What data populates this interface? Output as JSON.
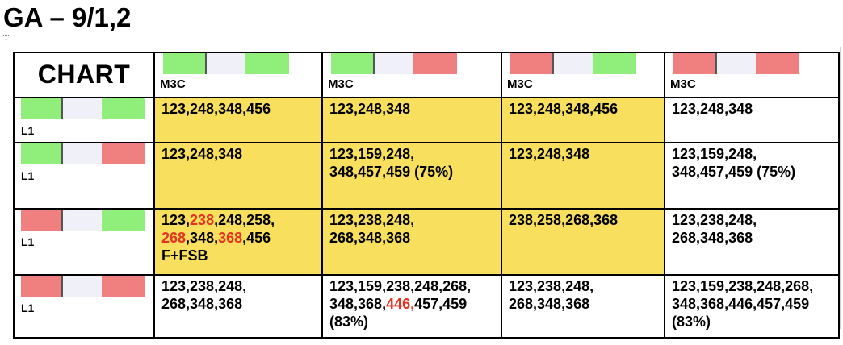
{
  "title": "GA – 9/1,2",
  "colors": {
    "green": "#90ee7a",
    "red": "#f08080",
    "neutral": "#f0f0f8",
    "highlight": "#f8df5d",
    "red_text": "#e53323"
  },
  "corner_label": "CHART",
  "columns": [
    {
      "label": "M3C",
      "left": "green",
      "right": "green"
    },
    {
      "label": "M3C",
      "left": "green",
      "right": "red"
    },
    {
      "label": "M3C",
      "left": "red",
      "right": "green"
    },
    {
      "label": "M3C",
      "left": "red",
      "right": "red"
    }
  ],
  "rows": [
    {
      "label": "L1",
      "left": "green",
      "right": "green",
      "cells": [
        {
          "highlight": true,
          "lines": [
            [
              {
                "t": "123,248,348,456"
              }
            ]
          ]
        },
        {
          "highlight": true,
          "lines": [
            [
              {
                "t": "123,248,348"
              }
            ]
          ]
        },
        {
          "highlight": true,
          "lines": [
            [
              {
                "t": "123,248,348,456"
              }
            ]
          ]
        },
        {
          "highlight": false,
          "lines": [
            [
              {
                "t": "123,248,348"
              }
            ]
          ]
        }
      ]
    },
    {
      "label": "L1",
      "left": "green",
      "right": "red",
      "cells": [
        {
          "highlight": true,
          "lines": [
            [
              {
                "t": "123,248,348"
              }
            ]
          ]
        },
        {
          "highlight": true,
          "lines": [
            [
              {
                "t": "123,159,248,"
              }
            ],
            [
              {
                "t": "348,457,459 (75%)"
              }
            ]
          ]
        },
        {
          "highlight": true,
          "lines": [
            [
              {
                "t": "123,248,348"
              }
            ]
          ]
        },
        {
          "highlight": false,
          "lines": [
            [
              {
                "t": "123,159,248,"
              }
            ],
            [
              {
                "t": "348,457,459 (75%)"
              }
            ]
          ]
        }
      ]
    },
    {
      "label": "L1",
      "left": "red",
      "right": "green",
      "cells": [
        {
          "highlight": true,
          "lines": [
            [
              {
                "t": "123,"
              },
              {
                "t": "238",
                "red": true
              },
              {
                "t": ",248,258,"
              }
            ],
            [
              {
                "t": "268",
                "red": true
              },
              {
                "t": ",348,"
              },
              {
                "t": "368",
                "red": true
              },
              {
                "t": ",456"
              }
            ],
            [
              {
                "t": "F+FSB"
              }
            ]
          ]
        },
        {
          "highlight": true,
          "lines": [
            [
              {
                "t": "123,238,248,"
              }
            ],
            [
              {
                "t": "268,348,368"
              }
            ]
          ]
        },
        {
          "highlight": true,
          "lines": [
            [
              {
                "t": "238,258,268,368"
              }
            ]
          ]
        },
        {
          "highlight": false,
          "lines": [
            [
              {
                "t": "123,238,248,"
              }
            ],
            [
              {
                "t": "268,348,368"
              }
            ]
          ]
        }
      ]
    },
    {
      "label": "L1",
      "left": "red",
      "right": "red",
      "cells": [
        {
          "highlight": false,
          "lines": [
            [
              {
                "t": "123,238,248,"
              }
            ],
            [
              {
                "t": "268,348,368"
              }
            ]
          ]
        },
        {
          "highlight": false,
          "lines": [
            [
              {
                "t": "123,159,238,248,268,"
              }
            ],
            [
              {
                "t": "348,368,"
              },
              {
                "t": "446,",
                "red": true
              },
              {
                "t": "457,459"
              }
            ],
            [
              {
                "t": "(83%)"
              }
            ]
          ]
        },
        {
          "highlight": false,
          "lines": [
            [
              {
                "t": "123,238,248,"
              }
            ],
            [
              {
                "t": "268,348,368"
              }
            ]
          ]
        },
        {
          "highlight": false,
          "lines": [
            [
              {
                "t": "123,159,238,248,268,"
              }
            ],
            [
              {
                "t": "348,368,446,457,459"
              }
            ],
            [
              {
                "t": "(83%)"
              }
            ]
          ]
        }
      ]
    }
  ]
}
